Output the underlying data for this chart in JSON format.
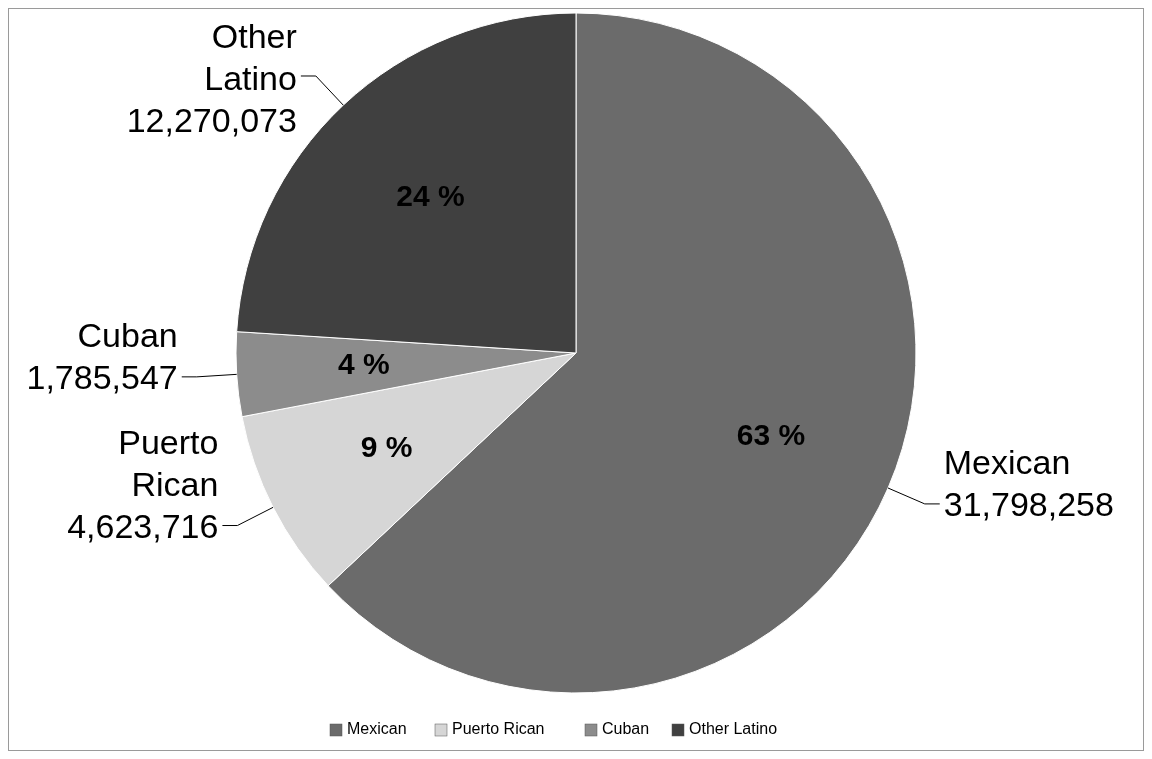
{
  "chart_data": {
    "type": "pie",
    "categories": [
      "Mexican",
      "Puerto Rican",
      "Cuban",
      "Other Latino"
    ],
    "values": [
      63,
      9,
      4,
      24
    ],
    "colors": [
      "#6b6b6b",
      "#d6d6d6",
      "#8c8c8c",
      "#404040"
    ],
    "value_labels": [
      "63 %",
      "9 %",
      "4 %",
      "24 %"
    ],
    "annotations": [
      "31,798,258",
      "4,623,716",
      "1,785,547",
      "12,270,073"
    ],
    "legend": "bottom"
  }
}
